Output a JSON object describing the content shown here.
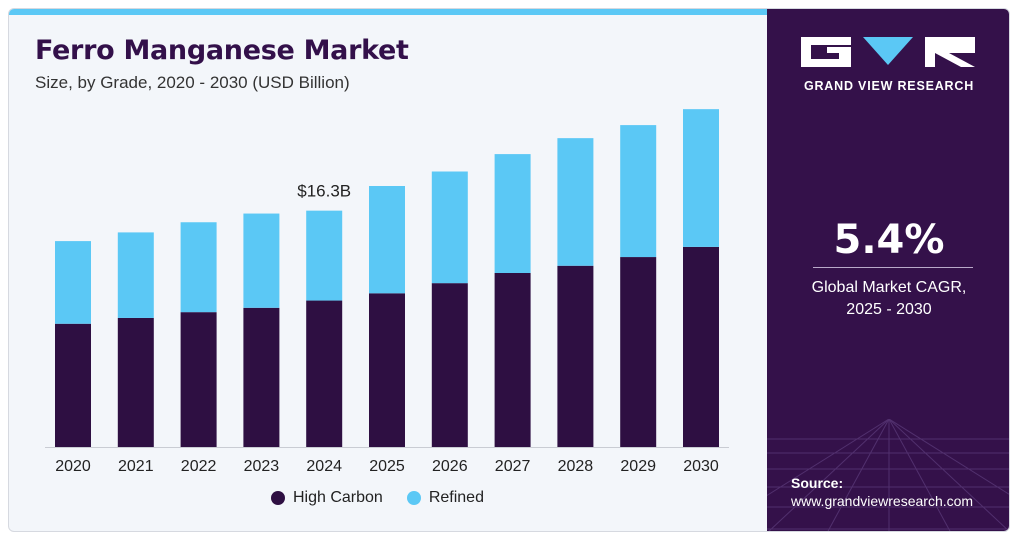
{
  "header": {
    "title": "Ferro Manganese Market",
    "subtitle": "Size, by Grade, 2020 - 2030 (USD Billion)"
  },
  "legend": [
    {
      "label": "High Carbon",
      "color": "#2e0f42"
    },
    {
      "label": "Refined",
      "color": "#5bc8f5"
    }
  ],
  "sidebar": {
    "brand": "GRAND VIEW RESEARCH",
    "cagr_value": "5.4%",
    "cagr_label_line1": "Global Market CAGR,",
    "cagr_label_line2": "2025 - 2030",
    "source_label": "Source:",
    "source_url": "www.grandviewresearch.com",
    "colors": {
      "background": "#34114a",
      "accent": "#5bc8f5"
    }
  },
  "chart_data": {
    "type": "bar",
    "stacked": true,
    "title": "Ferro Manganese Market",
    "subtitle": "Size, by Grade, 2020 - 2030 (USD Billion)",
    "categories": [
      "2020",
      "2021",
      "2022",
      "2023",
      "2024",
      "2025",
      "2026",
      "2027",
      "2028",
      "2029",
      "2030"
    ],
    "series": [
      {
        "name": "High Carbon",
        "color": "#2e0f42",
        "values": [
          8.5,
          8.9,
          9.3,
          9.6,
          10.1,
          10.6,
          11.3,
          12.0,
          12.5,
          13.1,
          13.8
        ]
      },
      {
        "name": "Refined",
        "color": "#5bc8f5",
        "values": [
          5.7,
          5.9,
          6.2,
          6.5,
          6.2,
          7.4,
          7.7,
          8.2,
          8.8,
          9.1,
          9.5
        ]
      }
    ],
    "annotations": [
      {
        "category": "2024",
        "text": "$16.3B"
      }
    ],
    "ylim": [
      0,
      24
    ],
    "grid": false,
    "legend_position": "bottom"
  }
}
